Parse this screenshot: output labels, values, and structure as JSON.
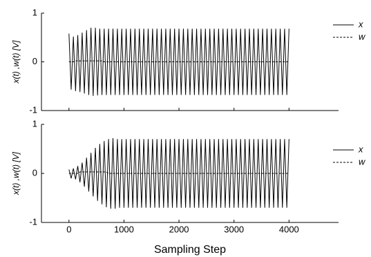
{
  "chart_data": [
    {
      "type": "line",
      "ylabel": "x(t) ,w(t)  [V]",
      "x": [
        0,
        40,
        80,
        120,
        160,
        200,
        240,
        280,
        320,
        360,
        400,
        440,
        480,
        520,
        560,
        600,
        640,
        680,
        720,
        760,
        800,
        840,
        880,
        920,
        960,
        1000,
        1040,
        1080,
        1120,
        1160,
        1200,
        1240,
        1280,
        1320,
        1360,
        1400,
        1440,
        1480,
        1520,
        1560,
        1600,
        1640,
        1680,
        1720,
        1760,
        1800,
        1840,
        1880,
        1920,
        1960,
        2000,
        2040,
        2080,
        2120,
        2160,
        2200,
        2240,
        2280,
        2320,
        2360,
        2400,
        2440,
        2480,
        2520,
        2560,
        2600,
        2640,
        2680,
        2720,
        2760,
        2800,
        2840,
        2880,
        2920,
        2960,
        3000,
        3040,
        3080,
        3120,
        3160,
        3200,
        3240,
        3280,
        3320,
        3360,
        3400,
        3440,
        3480,
        3520,
        3560,
        3600,
        3640,
        3680,
        3720,
        3760,
        3800,
        3840,
        3880,
        3920,
        3960,
        4000
      ],
      "series": [
        {
          "name": "x",
          "color": "#000000",
          "dashed": false,
          "values": [
            0.58,
            -0.57,
            0.52,
            -0.6,
            0.55,
            -0.62,
            0.6,
            -0.65,
            0.65,
            -0.68,
            0.7,
            -0.7,
            0.7,
            -0.69,
            0.68,
            -0.68,
            0.68,
            -0.68,
            0.68,
            -0.68,
            0.68,
            -0.68,
            0.68,
            -0.68,
            0.68,
            -0.68,
            0.68,
            -0.68,
            0.68,
            -0.68,
            0.68,
            -0.68,
            0.68,
            -0.68,
            0.68,
            -0.68,
            0.68,
            -0.68,
            0.68,
            -0.68,
            0.68,
            -0.68,
            0.68,
            -0.68,
            0.68,
            -0.68,
            0.68,
            -0.68,
            0.68,
            -0.68,
            0.68,
            -0.68,
            0.68,
            -0.68,
            0.68,
            -0.68,
            0.68,
            -0.68,
            0.68,
            -0.68,
            0.68,
            -0.68,
            0.68,
            -0.68,
            0.68,
            -0.68,
            0.68,
            -0.68,
            0.68,
            -0.68,
            0.68,
            -0.68,
            0.68,
            -0.68,
            0.68,
            -0.68,
            0.68,
            -0.68,
            0.68,
            -0.68,
            0.68,
            -0.68,
            0.68,
            -0.68,
            0.68,
            -0.68,
            0.68,
            -0.68,
            0.68,
            -0.68,
            0.68,
            -0.68,
            0.68,
            -0.68,
            0.68,
            -0.68,
            0.68,
            -0.68,
            0.68,
            -0.68,
            0.68
          ]
        },
        {
          "name": "w",
          "color": "#000000",
          "dashed": true,
          "values": [
            0,
            0,
            0,
            0.02,
            0.02,
            0.02,
            0.02,
            0.02,
            0.02,
            0.02,
            0.02,
            0.02,
            0.02,
            0.02,
            0.02,
            0.02,
            0,
            0,
            0,
            0,
            0,
            0,
            0,
            0,
            0,
            0,
            0,
            0,
            0,
            0,
            0,
            0,
            0,
            0,
            0,
            0,
            0,
            0,
            0,
            0,
            0,
            0,
            0,
            0,
            0,
            0,
            0,
            0,
            0,
            0,
            0,
            0,
            0,
            0,
            0,
            0,
            0,
            0,
            0,
            0,
            0,
            0,
            0,
            0,
            0,
            0,
            0,
            0,
            0,
            0,
            0,
            0,
            0,
            0,
            0,
            0,
            0,
            0,
            0,
            0,
            0,
            0,
            0,
            0,
            0,
            0,
            0,
            0,
            0,
            0,
            0,
            0,
            0,
            0,
            0,
            0,
            0,
            0,
            0,
            0,
            0
          ]
        }
      ],
      "xlim": [
        -500,
        4900
      ],
      "xticks": [
        0,
        1000,
        2000,
        3000,
        4000
      ],
      "xtick_labels": false,
      "ylim": [
        -1,
        1
      ],
      "yticks": [
        -1,
        0,
        1
      ],
      "legend": "right"
    },
    {
      "type": "line",
      "ylabel": "x(t) ,w(t)  [V]",
      "xlabel": "Sampling Step",
      "x": [
        0,
        40,
        80,
        120,
        160,
        200,
        240,
        280,
        320,
        360,
        400,
        440,
        480,
        520,
        560,
        600,
        640,
        680,
        720,
        760,
        800,
        840,
        880,
        920,
        960,
        1000,
        1040,
        1080,
        1120,
        1160,
        1200,
        1240,
        1280,
        1320,
        1360,
        1400,
        1440,
        1480,
        1520,
        1560,
        1600,
        1640,
        1680,
        1720,
        1760,
        1800,
        1840,
        1880,
        1920,
        1960,
        2000,
        2040,
        2080,
        2120,
        2160,
        2200,
        2240,
        2280,
        2320,
        2360,
        2400,
        2440,
        2480,
        2520,
        2560,
        2600,
        2640,
        2680,
        2720,
        2760,
        2800,
        2840,
        2880,
        2920,
        2960,
        3000,
        3040,
        3080,
        3120,
        3160,
        3200,
        3240,
        3280,
        3320,
        3360,
        3400,
        3440,
        3480,
        3520,
        3560,
        3600,
        3640,
        3680,
        3720,
        3760,
        3800,
        3840,
        3880,
        3920,
        3960,
        4000
      ],
      "series": [
        {
          "name": "x",
          "color": "#000000",
          "dashed": false,
          "values": [
            0.08,
            -0.1,
            0.1,
            -0.12,
            0.15,
            -0.18,
            0.22,
            -0.27,
            0.32,
            -0.37,
            0.42,
            -0.47,
            0.52,
            -0.56,
            0.6,
            -0.63,
            0.66,
            -0.69,
            0.7,
            -0.72,
            0.72,
            -0.72,
            0.7,
            -0.7,
            0.7,
            -0.7,
            0.7,
            -0.7,
            0.7,
            -0.7,
            0.7,
            -0.7,
            0.7,
            -0.7,
            0.7,
            -0.7,
            0.7,
            -0.7,
            0.7,
            -0.7,
            0.7,
            -0.7,
            0.7,
            -0.7,
            0.7,
            -0.7,
            0.7,
            -0.7,
            0.7,
            -0.7,
            0.7,
            -0.7,
            0.7,
            -0.7,
            0.7,
            -0.7,
            0.7,
            -0.7,
            0.7,
            -0.7,
            0.7,
            -0.7,
            0.7,
            -0.7,
            0.7,
            -0.7,
            0.7,
            -0.7,
            0.7,
            -0.7,
            0.7,
            -0.7,
            0.7,
            -0.7,
            0.7,
            -0.7,
            0.7,
            -0.7,
            0.7,
            -0.7,
            0.7,
            -0.7,
            0.7,
            -0.7,
            0.7,
            -0.7,
            0.7,
            -0.7,
            0.7,
            -0.7,
            0.7,
            -0.7,
            0.7,
            -0.7,
            0.7,
            -0.7,
            0.7,
            -0.7,
            0.7,
            -0.7,
            0.7
          ]
        },
        {
          "name": "w",
          "color": "#000000",
          "dashed": true,
          "values": [
            0,
            0,
            0,
            0,
            0,
            0.03,
            0.03,
            0.03,
            0.03,
            0.03,
            0.03,
            0.03,
            0.03,
            0.03,
            0.03,
            0.03,
            0.03,
            0.03,
            0,
            0,
            0,
            0,
            0,
            0,
            0,
            0,
            0,
            0,
            0,
            0,
            0,
            0,
            0,
            0,
            0,
            0,
            0,
            0,
            0,
            0,
            0,
            0,
            0,
            0,
            0,
            0,
            0,
            0,
            0,
            0,
            0,
            0,
            0,
            0,
            0,
            0,
            0,
            0,
            0,
            0,
            0,
            0,
            0,
            0,
            0,
            0,
            0,
            0,
            0,
            0,
            0,
            0,
            0,
            0,
            0,
            0,
            0,
            0,
            0,
            0,
            0,
            0,
            0,
            0,
            0,
            0,
            0,
            0,
            0,
            0,
            0,
            0,
            0,
            0,
            0,
            0,
            0,
            0,
            0,
            0,
            0
          ]
        }
      ],
      "xlim": [
        -500,
        4900
      ],
      "xticks": [
        0,
        1000,
        2000,
        3000,
        4000
      ],
      "xtick_labels": true,
      "ylim": [
        -1,
        1
      ],
      "yticks": [
        -1,
        0,
        1
      ],
      "legend": "right"
    }
  ]
}
